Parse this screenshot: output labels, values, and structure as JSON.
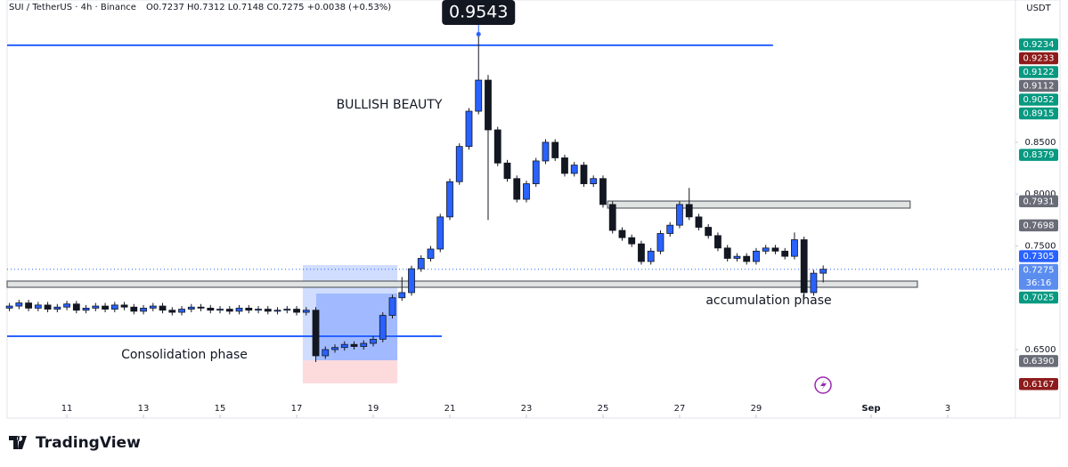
{
  "chart_data": {
    "type": "candlestick",
    "symbol": "SUI / TetherUS · 4h · Binance",
    "ohlc_text": "O0.7237 H0.7312 L0.7148 C0.7275 +0.0038 (+0.53%)",
    "currency": "USDT",
    "brand": "TradingView",
    "annotations": {
      "bullish": "BULLISH BEAUTY",
      "consolidation": "Consolidation phase",
      "accumulation": "accumulation phase"
    },
    "peak": {
      "x": 21.75,
      "value": 0.9543
    },
    "up_color": "#2962ff",
    "down_color": "#131722",
    "xlim": [
      9.44,
      35.77
    ],
    "ylim": [
      0.6028,
      0.9873
    ],
    "grid": false,
    "xticks": [
      11,
      13,
      15,
      17,
      19,
      21,
      23,
      25,
      27,
      29,
      {
        "value": 32,
        "label": "Sep"
      },
      {
        "value": 34,
        "label": "3"
      }
    ],
    "yticks": [
      {
        "value": 0.65,
        "label": "0.6500"
      },
      {
        "value": 0.75,
        "label": "0.7500"
      },
      {
        "value": 0.8,
        "label": "0.8000"
      },
      {
        "value": 0.85,
        "label": "0.8500"
      }
    ],
    "x": [
      9.5,
      9.75,
      10,
      10.25,
      10.5,
      10.75,
      11,
      11.25,
      11.5,
      11.75,
      12,
      12.25,
      12.5,
      12.75,
      13,
      13.25,
      13.5,
      13.75,
      14,
      14.25,
      14.5,
      14.75,
      15,
      15.25,
      15.5,
      15.75,
      16,
      16.25,
      16.5,
      16.75,
      17,
      17.25,
      17.5,
      17.75,
      18,
      18.25,
      18.5,
      18.75,
      19,
      19.25,
      19.5,
      19.75,
      20,
      20.25,
      20.5,
      20.75,
      21,
      21.25,
      21.5,
      21.75,
      22,
      22.25,
      22.5,
      22.75,
      23,
      23.25,
      23.5,
      23.75,
      24,
      24.25,
      24.5,
      24.75,
      25,
      25.25,
      25.5,
      25.75,
      26,
      26.25,
      26.5,
      26.75,
      27,
      27.25,
      27.5,
      27.75,
      28,
      28.25,
      28.5,
      28.75,
      29,
      29.25,
      29.5,
      29.75,
      30,
      30.25,
      30.5,
      30.75
    ],
    "open": [
      0.69,
      0.692,
      0.695,
      0.69,
      0.693,
      0.689,
      0.691,
      0.694,
      0.688,
      0.69,
      0.692,
      0.689,
      0.693,
      0.691,
      0.687,
      0.69,
      0.692,
      0.688,
      0.686,
      0.689,
      0.691,
      0.69,
      0.688,
      0.689,
      0.687,
      0.69,
      0.688,
      0.689,
      0.687,
      0.688,
      0.689,
      0.686,
      0.688,
      0.644,
      0.65,
      0.652,
      0.655,
      0.653,
      0.656,
      0.66,
      0.683,
      0.7,
      0.705,
      0.728,
      0.738,
      0.747,
      0.778,
      0.812,
      0.846,
      0.88,
      0.91,
      0.862,
      0.83,
      0.815,
      0.795,
      0.81,
      0.832,
      0.85,
      0.835,
      0.82,
      0.828,
      0.81,
      0.815,
      0.79,
      0.765,
      0.758,
      0.752,
      0.735,
      0.745,
      0.762,
      0.77,
      0.79,
      0.778,
      0.768,
      0.76,
      0.748,
      0.738,
      0.74,
      0.735,
      0.745,
      0.748,
      0.745,
      0.74,
      0.756,
      0.705,
      0.7237
    ],
    "high": [
      0.695,
      0.698,
      0.698,
      0.696,
      0.696,
      0.694,
      0.697,
      0.697,
      0.693,
      0.695,
      0.695,
      0.696,
      0.696,
      0.694,
      0.693,
      0.695,
      0.695,
      0.691,
      0.692,
      0.694,
      0.694,
      0.693,
      0.692,
      0.692,
      0.693,
      0.693,
      0.692,
      0.692,
      0.691,
      0.692,
      0.692,
      0.691,
      0.691,
      0.653,
      0.655,
      0.658,
      0.658,
      0.659,
      0.663,
      0.686,
      0.703,
      0.72,
      0.731,
      0.741,
      0.75,
      0.781,
      0.815,
      0.849,
      0.883,
      0.9543,
      0.915,
      0.865,
      0.833,
      0.818,
      0.813,
      0.835,
      0.853,
      0.853,
      0.838,
      0.831,
      0.831,
      0.818,
      0.818,
      0.793,
      0.768,
      0.761,
      0.755,
      0.748,
      0.765,
      0.773,
      0.793,
      0.806,
      0.781,
      0.771,
      0.763,
      0.751,
      0.743,
      0.743,
      0.748,
      0.751,
      0.751,
      0.748,
      0.763,
      0.759,
      0.727,
      0.7312
    ],
    "low": [
      0.687,
      0.689,
      0.687,
      0.687,
      0.686,
      0.686,
      0.688,
      0.685,
      0.685,
      0.687,
      0.686,
      0.686,
      0.688,
      0.684,
      0.684,
      0.687,
      0.685,
      0.683,
      0.683,
      0.686,
      0.687,
      0.685,
      0.685,
      0.684,
      0.684,
      0.685,
      0.685,
      0.684,
      0.684,
      0.685,
      0.683,
      0.683,
      0.638,
      0.641,
      0.647,
      0.649,
      0.65,
      0.65,
      0.653,
      0.657,
      0.68,
      0.697,
      0.702,
      0.725,
      0.735,
      0.744,
      0.775,
      0.809,
      0.843,
      0.877,
      0.775,
      0.827,
      0.812,
      0.792,
      0.792,
      0.807,
      0.829,
      0.832,
      0.817,
      0.817,
      0.807,
      0.807,
      0.787,
      0.762,
      0.755,
      0.749,
      0.732,
      0.732,
      0.742,
      0.759,
      0.767,
      0.775,
      0.765,
      0.757,
      0.745,
      0.735,
      0.735,
      0.732,
      0.732,
      0.742,
      0.742,
      0.737,
      0.737,
      0.7,
      0.702,
      0.7148
    ],
    "close": [
      0.692,
      0.695,
      0.69,
      0.693,
      0.689,
      0.691,
      0.694,
      0.688,
      0.69,
      0.692,
      0.689,
      0.693,
      0.691,
      0.687,
      0.69,
      0.692,
      0.688,
      0.686,
      0.689,
      0.691,
      0.69,
      0.688,
      0.689,
      0.687,
      0.69,
      0.688,
      0.689,
      0.687,
      0.688,
      0.689,
      0.686,
      0.688,
      0.644,
      0.65,
      0.652,
      0.655,
      0.653,
      0.656,
      0.66,
      0.683,
      0.7,
      0.705,
      0.728,
      0.738,
      0.747,
      0.778,
      0.812,
      0.846,
      0.88,
      0.91,
      0.862,
      0.83,
      0.815,
      0.795,
      0.81,
      0.832,
      0.85,
      0.835,
      0.82,
      0.828,
      0.81,
      0.815,
      0.79,
      0.765,
      0.758,
      0.752,
      0.735,
      0.745,
      0.762,
      0.77,
      0.79,
      0.778,
      0.768,
      0.76,
      0.748,
      0.738,
      0.74,
      0.735,
      0.745,
      0.748,
      0.745,
      0.74,
      0.756,
      0.705,
      0.7237,
      0.7275
    ],
    "price_labels": [
      {
        "value": 0.9234,
        "label": "0.9234",
        "color": "#089981"
      },
      {
        "value": 0.9233,
        "label": "0.9233",
        "color": "#8e1b1b"
      },
      {
        "value": 0.9122,
        "label": "0.9122",
        "color": "#089981"
      },
      {
        "value": 0.9112,
        "label": "0.9112",
        "color": "#6a6d78"
      },
      {
        "value": 0.9052,
        "label": "0.9052",
        "color": "#089981"
      },
      {
        "value": 0.8915,
        "label": "0.8915",
        "color": "#089981"
      },
      {
        "value": 0.8379,
        "label": "0.8379",
        "color": "#089981"
      },
      {
        "value": 0.7931,
        "label": "0.7931",
        "color": "#6a6d78"
      },
      {
        "value": 0.7698,
        "label": "0.7698",
        "color": "#6a6d78"
      },
      {
        "value": 0.7305,
        "label": "0.7305",
        "color": "#2962ff"
      },
      {
        "value": 0.7275,
        "label": "0.7275",
        "color": "#5b8def",
        "countdown": "36:16"
      },
      {
        "value": 0.7025,
        "label": "0.7025",
        "color": "#089981"
      },
      {
        "value": 0.639,
        "label": "0.6390",
        "color": "#6a6d78"
      },
      {
        "value": 0.6167,
        "label": "0.6167",
        "color": "#8e1b1b"
      }
    ],
    "lines": [
      {
        "x": [
          9.44,
          29.44
        ],
        "y": 0.9436,
        "color": "#2962ff"
      },
      {
        "x": [
          9.44,
          20.79
        ],
        "y": 0.6629,
        "color": "#2962ff"
      }
    ],
    "zones": [
      {
        "x": [
          17.16,
          19.63
        ],
        "y": [
          0.6397,
          0.7315
        ],
        "color": "rgba(41,98,255,0.22)"
      },
      {
        "x": [
          17.51,
          19.63
        ],
        "y": [
          0.6397,
          0.7041
        ],
        "color": "rgba(41,98,255,0.28)"
      },
      {
        "x": [
          17.16,
          19.63
        ],
        "y": [
          0.6174,
          0.6397
        ],
        "color": "rgba(242,54,69,0.18)"
      },
      {
        "x": [
          25.12,
          33.02
        ],
        "y": [
          0.7865,
          0.7933
        ],
        "color": "#dfe3e1"
      },
      {
        "x": [
          9.44,
          33.21
        ],
        "y": [
          0.7101,
          0.7161
        ],
        "color": "#dfe3e1"
      }
    ]
  }
}
